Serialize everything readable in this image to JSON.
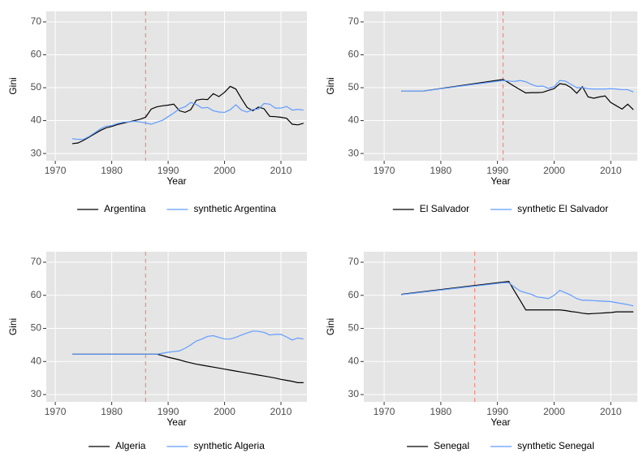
{
  "chart_data": [
    {
      "type": "line",
      "xlabel": "Year",
      "ylabel": "Gini",
      "x": [
        1973,
        1974,
        1975,
        1976,
        1977,
        1978,
        1979,
        1980,
        1981,
        1982,
        1983,
        1984,
        1985,
        1986,
        1987,
        1988,
        1989,
        1990,
        1991,
        1992,
        1993,
        1994,
        1995,
        1996,
        1997,
        1998,
        1999,
        2000,
        2001,
        2002,
        2003,
        2004,
        2005,
        2006,
        2007,
        2008,
        2009,
        2010,
        2011,
        2012,
        2013,
        2014
      ],
      "series": [
        {
          "name": "Argentina",
          "color": "#000000",
          "values": [
            33,
            33.2,
            34,
            35,
            36,
            37,
            37.8,
            38.2,
            38.8,
            39.2,
            39.6,
            40,
            40.4,
            41,
            43.5,
            44.2,
            44.5,
            44.7,
            45,
            43,
            42.5,
            43.3,
            46.2,
            46.5,
            46.4,
            48.2,
            47.3,
            48.6,
            50.4,
            49.6,
            46.7,
            44,
            43,
            44.1,
            43.6,
            41.3,
            41.2,
            41,
            40.7,
            38.9,
            38.7,
            39.2
          ]
        },
        {
          "name": "synthetic Argentina",
          "color": "#619cff",
          "values": [
            34.5,
            34.3,
            34.3,
            35.2,
            36.3,
            37.5,
            38.3,
            38.5,
            39.1,
            39.5,
            39.6,
            39.8,
            39.6,
            39.3,
            38.9,
            39.5,
            40.1,
            41.2,
            42.3,
            43.6,
            44.2,
            45.5,
            44.9,
            43.8,
            44,
            43,
            42.6,
            42.5,
            43.3,
            44.8,
            43.2,
            42.6,
            43.4,
            43.5,
            45.2,
            45,
            43.8,
            43.8,
            44.3,
            43.2,
            43.4,
            43.2
          ]
        }
      ],
      "vline": 1986,
      "vline_color": "#f8766d",
      "xlim": [
        1968.4,
        2014.6
      ],
      "xticks": [
        1970,
        1980,
        1990,
        2000,
        2010
      ],
      "ylim": [
        27.8,
        73.2
      ],
      "yticks": [
        30,
        40,
        50,
        60,
        70
      ],
      "grid": true
    },
    {
      "type": "line",
      "xlabel": "Year",
      "ylabel": "Gini",
      "x": [
        1973,
        1977,
        1991,
        1992,
        1993,
        1994,
        1995,
        1996,
        1997,
        1998,
        1999,
        2000,
        2001,
        2002,
        2003,
        2004,
        2005,
        2006,
        2007,
        2008,
        2009,
        2010,
        2011,
        2012,
        2013,
        2014
      ],
      "series": [
        {
          "name": "El Salvador",
          "color": "#000000",
          "values": [
            49,
            49,
            52.5,
            51.5,
            50.4,
            49.4,
            48.4,
            48.5,
            48.5,
            48.6,
            49.2,
            49.7,
            51.2,
            51,
            50,
            48.3,
            50.3,
            47.2,
            46.8,
            47.2,
            47.5,
            45.5,
            44.5,
            43.5,
            45,
            43.3
          ]
        },
        {
          "name": "synthetic El Salvador",
          "color": "#619cff",
          "values": [
            49,
            49,
            52.2,
            52,
            51.9,
            52.2,
            51.8,
            51,
            50.4,
            50.5,
            49.8,
            50.3,
            52.2,
            52,
            51,
            50,
            50,
            49.7,
            49.6,
            49.6,
            49.6,
            49.7,
            49.6,
            49.4,
            49.4,
            48.7
          ]
        }
      ],
      "vline": 1991,
      "vline_color": "#f8766d",
      "xlim": [
        1966.4,
        2014.7
      ],
      "xticks": [
        1970,
        1980,
        1990,
        2000,
        2010
      ],
      "ylim": [
        27.8,
        73.2
      ],
      "yticks": [
        30,
        40,
        50,
        60,
        70
      ],
      "grid": true
    },
    {
      "type": "line",
      "xlabel": "Year",
      "ylabel": "Gini",
      "x": [
        1973,
        1988,
        1989,
        1990,
        1991,
        1992,
        1993,
        1994,
        1995,
        1996,
        1997,
        1998,
        1999,
        2000,
        2001,
        2002,
        2003,
        2004,
        2005,
        2006,
        2007,
        2008,
        2009,
        2010,
        2011,
        2012,
        2013,
        2014
      ],
      "series": [
        {
          "name": "Algeria",
          "color": "#000000",
          "values": [
            42.2,
            42.2,
            41.8,
            41.3,
            40.9,
            40.5,
            40,
            39.6,
            39.2,
            38.9,
            38.6,
            38.3,
            38,
            37.7,
            37.4,
            37.1,
            36.8,
            36.5,
            36.2,
            35.9,
            35.6,
            35.3,
            35,
            34.6,
            34.3,
            34,
            33.6,
            33.6
          ]
        },
        {
          "name": "synthetic Algeria",
          "color": "#619cff",
          "values": [
            42.2,
            42.2,
            42.5,
            42.8,
            43,
            43.2,
            44,
            45,
            46.2,
            46.8,
            47.6,
            47.8,
            47.3,
            46.8,
            46.8,
            47.3,
            48,
            48.6,
            49.2,
            49.1,
            48.8,
            48,
            48.2,
            48.2,
            47.4,
            46.5,
            47.1,
            46.8
          ]
        }
      ],
      "vline": 1986,
      "vline_color": "#f8766d",
      "xlim": [
        1968.4,
        2014.6
      ],
      "xticks": [
        1970,
        1980,
        1990,
        2000,
        2010
      ],
      "ylim": [
        27.8,
        73.2
      ],
      "yticks": [
        30,
        40,
        50,
        60,
        70
      ],
      "grid": true
    },
    {
      "type": "line",
      "xlabel": "Year",
      "ylabel": "Gini",
      "x": [
        1973,
        1991,
        1992,
        1993,
        1994,
        1995,
        1996,
        1997,
        1998,
        1999,
        2000,
        2001,
        2002,
        2003,
        2004,
        2005,
        2006,
        2007,
        2008,
        2009,
        2010,
        2011,
        2012,
        2013,
        2014
      ],
      "series": [
        {
          "name": "Senegal",
          "color": "#000000",
          "values": [
            60.3,
            64,
            64.2,
            61.3,
            58.5,
            55.6,
            55.6,
            55.6,
            55.6,
            55.6,
            55.6,
            55.6,
            55.4,
            55.1,
            54.9,
            54.6,
            54.4,
            54.5,
            54.6,
            54.7,
            54.8,
            55,
            55,
            55,
            55
          ]
        },
        {
          "name": "synthetic Senegal",
          "color": "#619cff",
          "values": [
            60.2,
            63.8,
            63.8,
            62.5,
            61.3,
            60.8,
            60.3,
            59.5,
            59.3,
            59,
            60,
            61.5,
            60.8,
            60,
            59,
            58.5,
            58.5,
            58.4,
            58.3,
            58.2,
            58.1,
            57.8,
            57.5,
            57.2,
            56.8
          ]
        }
      ],
      "vline": 1986,
      "vline_color": "#f8766d",
      "xlim": [
        1966.4,
        2014.7
      ],
      "xticks": [
        1970,
        1980,
        1990,
        2000,
        2010
      ],
      "ylim": [
        27.8,
        73.2
      ],
      "yticks": [
        30,
        40,
        50,
        60,
        70
      ],
      "grid": true
    }
  ]
}
